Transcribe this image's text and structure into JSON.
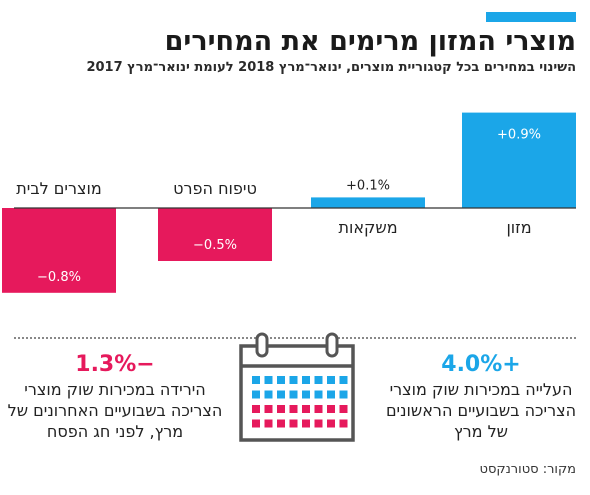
{
  "title": "מוצרי המזון מרימים את המחירים",
  "subtitle": "השינוי במחירים בכל קטגוריית מוצרים, ינואר־מרץ 2018 לעומת ינואר־מרץ 2017",
  "chart_data": {
    "type": "bar",
    "categories": [
      "מזון",
      "משקאות",
      "טיפוח הפרט",
      "מוצרים לבית"
    ],
    "values": [
      0.9,
      0.1,
      -0.5,
      -0.8
    ],
    "value_labels": [
      "+0.9%",
      "+0.1%",
      "−0.5%",
      "−0.8%"
    ],
    "ylim": [
      -1.0,
      1.0
    ],
    "grid": false,
    "colors": {
      "positive": "#1ba6e8",
      "negative": "#e6195c"
    }
  },
  "stats": {
    "left": {
      "value": "−1.3%",
      "text": "הירידה במכירות שוק מוצרי הצריכה בשבועיים האחרונים של מרץ, לפני חג הפסח"
    },
    "right": {
      "value": "+4.0%",
      "text": "העלייה במכירות שוק מוצרי הצריכה בשבועיים הראשונים של מרץ"
    }
  },
  "calendar_icon": "calendar-icon",
  "source": "מקור: סטורנקסט"
}
